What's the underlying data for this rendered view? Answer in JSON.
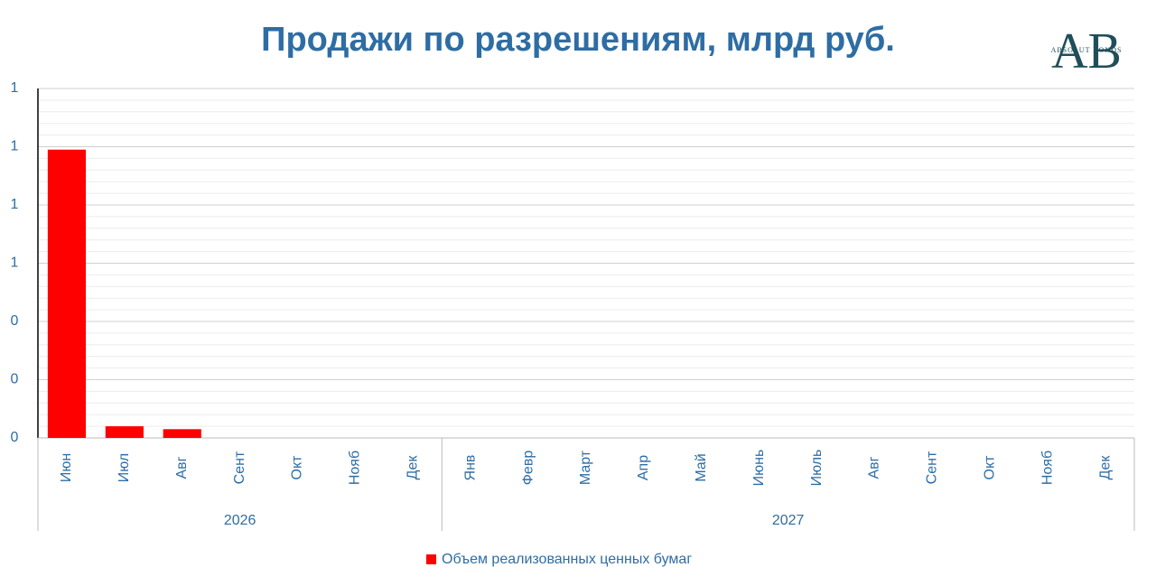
{
  "chart_data": {
    "type": "bar",
    "title": "Продажи по разрешениям, млрд руб.",
    "logo": {
      "mark": "AB",
      "text": "ABSOLUT BONDS"
    },
    "categories": [
      "Июн",
      "Июл",
      "Авг",
      "Сент",
      "Окт",
      "Нояб",
      "Дек",
      "Янв",
      "Февр",
      "Март",
      "Апр",
      "Май",
      "Июнь",
      "Июль",
      "Авг",
      "Сент",
      "Окт",
      "Нояб",
      "Дек"
    ],
    "category_groups": [
      {
        "label": "2026",
        "count": 7
      },
      {
        "label": "2027",
        "count": 12
      }
    ],
    "series": [
      {
        "name": "Объем реализованных ценных бумаг",
        "color": "#ff0000",
        "values": [
          0.99,
          0.04,
          0.03,
          null,
          null,
          null,
          null,
          null,
          null,
          null,
          null,
          null,
          null,
          null,
          null,
          null,
          null,
          null,
          null
        ]
      }
    ],
    "ylim": [
      0,
      1.2
    ],
    "yticks": [
      0,
      {
        "value": 0.2,
        "label": "0"
      },
      {
        "value": 0.4,
        "label": "0"
      },
      {
        "value": 0.6,
        "label": "1"
      },
      {
        "value": 0.8,
        "label": "1"
      },
      {
        "value": 1.0,
        "label": "1"
      },
      {
        "value": 1.2,
        "label": "1"
      }
    ],
    "minor_yticks": [
      0.04,
      0.08,
      0.12,
      0.16,
      0.24,
      0.28,
      0.32,
      0.36,
      0.44,
      0.48,
      0.52,
      0.56,
      0.64,
      0.68,
      0.72,
      0.76,
      0.84,
      0.88,
      0.92,
      0.96,
      1.04,
      1.08,
      1.12,
      1.16
    ],
    "grid": true,
    "legend": "bottom"
  }
}
